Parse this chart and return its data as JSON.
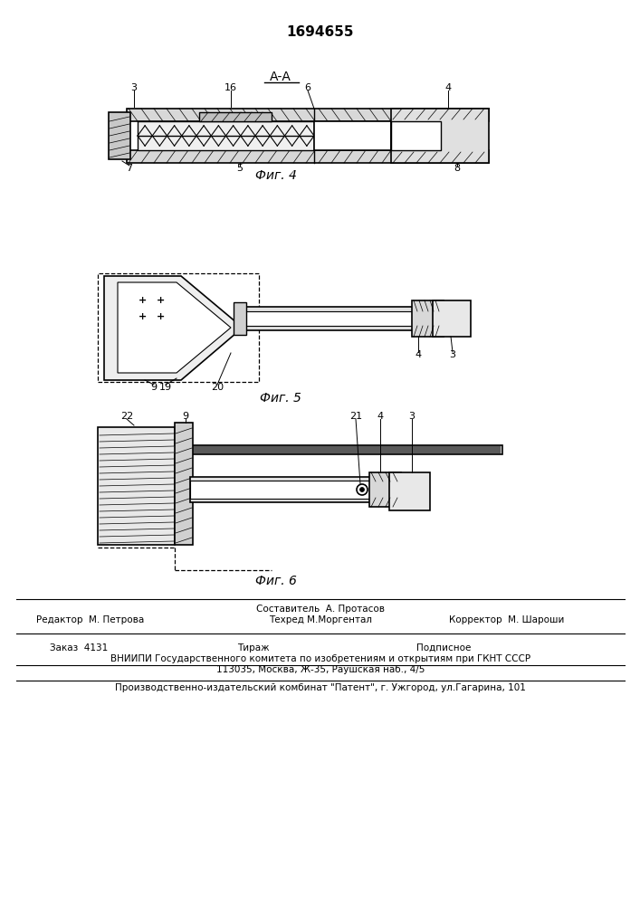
{
  "patent_number": "1694655",
  "fig4_label": "Фиг. 4",
  "fig5_label": "Фиг. 5",
  "fig6_label": "Фиг. 6",
  "section_label": "А-А",
  "background_color": "#ffffff",
  "line_color": "#000000",
  "fill_light": "#d0d0d0",
  "fill_medium": "#a0a0a0",
  "footer_line1": "Составитель  А. Протасов",
  "footer_line2": "Техред М.Моргентал",
  "footer_line3": "Корректор  М. Шароши",
  "footer_left": "Редактор  М. Петрова",
  "footer_zakaz": "Заказ  4131",
  "footer_tirazh": "Тираж",
  "footer_podpisnoe": "Подписное",
  "footer_vniiipi": "ВНИИПИ Государственного комитета по изобретениям и открытиям при ГКНТ СССР",
  "footer_address": "113035, Москва, Ж-35, Раушская наб., 4/5",
  "footer_proizv": "Производственно-издательский комбинат \"Патент\", г. Ужгород, ул.Гагарина, 101"
}
